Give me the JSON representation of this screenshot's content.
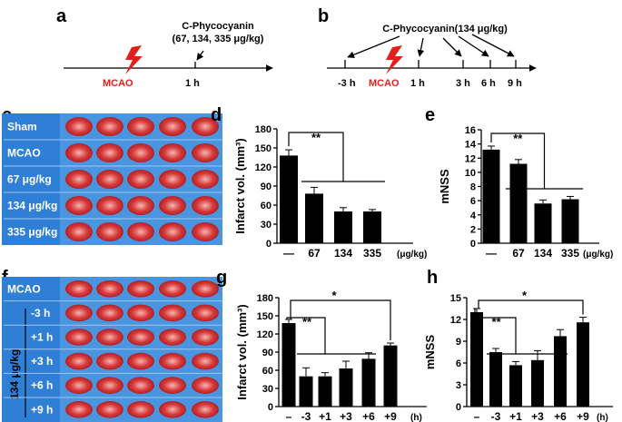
{
  "panel_labels": {
    "a": "a",
    "b": "b",
    "c": "c",
    "d": "d",
    "e": "e",
    "f": "f",
    "g": "g",
    "h": "h"
  },
  "timeline_a": {
    "drug": "C-Phycocyanin",
    "dose": "(67, 134, 335 μg/kg)",
    "event": "MCAO",
    "time": "1 h"
  },
  "timeline_b": {
    "drug": "C-Phycocyanin(134 μg/kg)",
    "event": "MCAO",
    "times": [
      "-3 h",
      "1 h",
      "3 h",
      "6 h",
      "9 h"
    ]
  },
  "panel_c": {
    "rows": [
      "Sham",
      "MCAO",
      "67 μg/kg",
      "134 μg/kg",
      "335 μg/kg"
    ]
  },
  "panel_f": {
    "rows": [
      "MCAO",
      "-3 h",
      "+1 h",
      "+3 h",
      "+6 h",
      "+9 h"
    ],
    "group_label": "134 μg/kg"
  },
  "colors": {
    "red": "#e0201c",
    "panel_bg": "#2f7fd6"
  },
  "chart_data": [
    {
      "id": "d",
      "type": "bar",
      "ylabel": "Infarct vol. (mm³)",
      "ylim": [
        0,
        180
      ],
      "yticks": [
        "0",
        "30",
        "60",
        "90",
        "120",
        "150",
        "180"
      ],
      "categories": [
        "—",
        "67",
        "134",
        "335"
      ],
      "values": [
        138,
        78,
        50,
        50
      ],
      "errors": [
        9,
        10,
        6,
        3
      ],
      "unit": "(μg/kg)",
      "sig": "**"
    },
    {
      "id": "e",
      "type": "bar",
      "ylabel": "mNSS",
      "ylim": [
        0,
        16
      ],
      "yticks": [
        "0",
        "2",
        "4",
        "6",
        "8",
        "10",
        "12",
        "14",
        "16"
      ],
      "categories": [
        "—",
        "67",
        "134",
        "335"
      ],
      "values": [
        13.2,
        11.2,
        5.6,
        6.2
      ],
      "errors": [
        0.5,
        0.6,
        0.5,
        0.4
      ],
      "unit": "(μg/kg)",
      "sig": "**"
    },
    {
      "id": "g",
      "type": "bar",
      "ylabel": "Infarct vol. (mm³)",
      "ylim": [
        0,
        180
      ],
      "yticks": [
        "0",
        "30",
        "60",
        "90",
        "120",
        "150",
        "180"
      ],
      "categories": [
        "–",
        "-3",
        "+1",
        "+3",
        "+6",
        "+9"
      ],
      "values": [
        138,
        50,
        50,
        63,
        79,
        101
      ],
      "errors": [
        6,
        14,
        6,
        12,
        10,
        4
      ],
      "unit": "(h)",
      "sig": [
        "**",
        "*"
      ]
    },
    {
      "id": "h",
      "type": "bar",
      "ylabel": "mNSS",
      "ylim": [
        0,
        15
      ],
      "yticks": [
        "0",
        "3",
        "6",
        "9",
        "12",
        "15"
      ],
      "categories": [
        "–",
        "-3",
        "+1",
        "+3",
        "+6",
        "+9"
      ],
      "values": [
        13.0,
        7.5,
        5.7,
        6.4,
        9.7,
        11.6
      ],
      "errors": [
        0.5,
        0.5,
        0.5,
        1.3,
        0.9,
        0.7
      ],
      "unit": "(h)",
      "sig": [
        "**",
        "*"
      ]
    }
  ]
}
